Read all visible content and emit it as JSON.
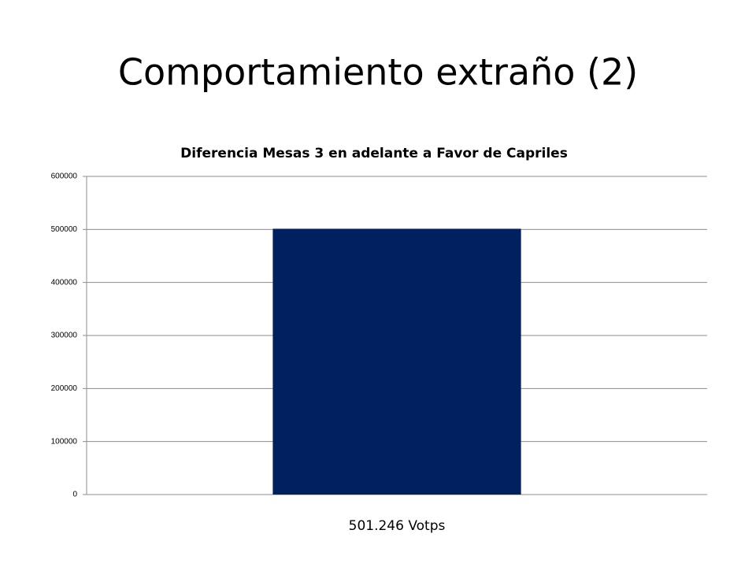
{
  "slide": {
    "title": "Comportamiento extraño (2)"
  },
  "chart_data": {
    "type": "bar",
    "title": "Diferencia Mesas 3 en adelante a Favor de Capriles",
    "categories": [
      "501.246 Votps"
    ],
    "values": [
      501246
    ],
    "color": "#002060",
    "ylim": [
      0,
      600000
    ],
    "yticks": [
      0,
      100000,
      200000,
      300000,
      400000,
      500000,
      600000
    ],
    "grid": true
  }
}
